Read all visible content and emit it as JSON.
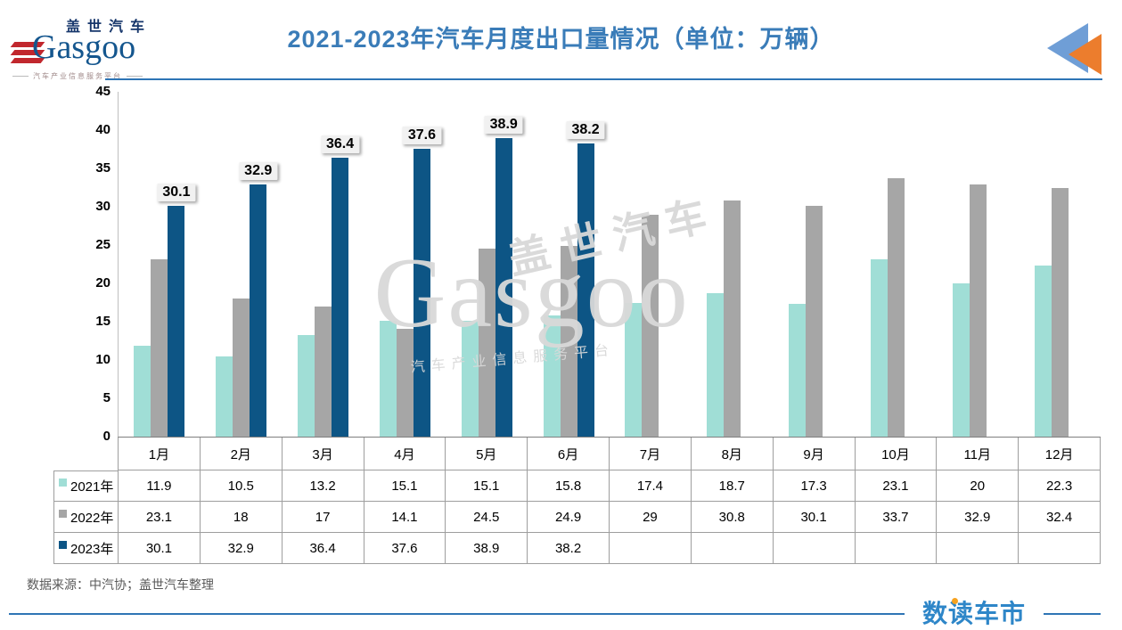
{
  "header": {
    "logo": {
      "cn": "盖世汽车",
      "en": "Gasgoo",
      "tagline": "汽车产业信息服务平台"
    },
    "title": "2021-2023年汽车月度出口量情况（单位：万辆）",
    "back_icon": "double-left-triangles"
  },
  "chart_data": {
    "type": "bar",
    "title": "2021-2023年汽车月度出口量情况（单位：万辆）",
    "categories": [
      "1月",
      "2月",
      "3月",
      "4月",
      "5月",
      "6月",
      "7月",
      "8月",
      "9月",
      "10月",
      "11月",
      "12月"
    ],
    "series": [
      {
        "name": "2021年",
        "color": "#a0ded6",
        "data_labels": false,
        "values": [
          11.9,
          10.5,
          13.2,
          15.1,
          15.1,
          15.8,
          17.4,
          18.7,
          17.3,
          23.1,
          20,
          22.3
        ]
      },
      {
        "name": "2022年",
        "color": "#a6a6a6",
        "data_labels": false,
        "values": [
          23.1,
          18,
          17,
          14.1,
          24.5,
          24.9,
          29,
          30.8,
          30.1,
          33.7,
          32.9,
          32.4
        ]
      },
      {
        "name": "2023年",
        "color": "#0d5585",
        "data_labels": true,
        "values": [
          30.1,
          32.9,
          36.4,
          37.6,
          38.9,
          38.2,
          null,
          null,
          null,
          null,
          null,
          null
        ]
      }
    ],
    "ylim": [
      0,
      45
    ],
    "yticks": [
      0,
      5,
      10,
      15,
      20,
      25,
      30,
      35,
      40,
      45
    ],
    "grid": false,
    "legend_position": "table-left",
    "xlabel": "",
    "ylabel": ""
  },
  "watermark": {
    "cn": "盖世汽车",
    "en": "Gasgoo",
    "tagline": "汽车产业信息服务平台"
  },
  "footer": {
    "source": "数据来源：中汽协；盖世汽车整理",
    "brand": "数读车市"
  },
  "colors": {
    "title_blue": "#3a7cb8",
    "divider_blue": "#2e75b5",
    "brand_blue": "#2e86c8",
    "brand_dot_orange": "#f6a21f",
    "logo_red": "#c1272d",
    "logo_navy": "#16366b",
    "back_icon_blue": "#6f9ed6",
    "back_icon_orange": "#ec7d2d",
    "table_border": "#9e9e9e"
  }
}
